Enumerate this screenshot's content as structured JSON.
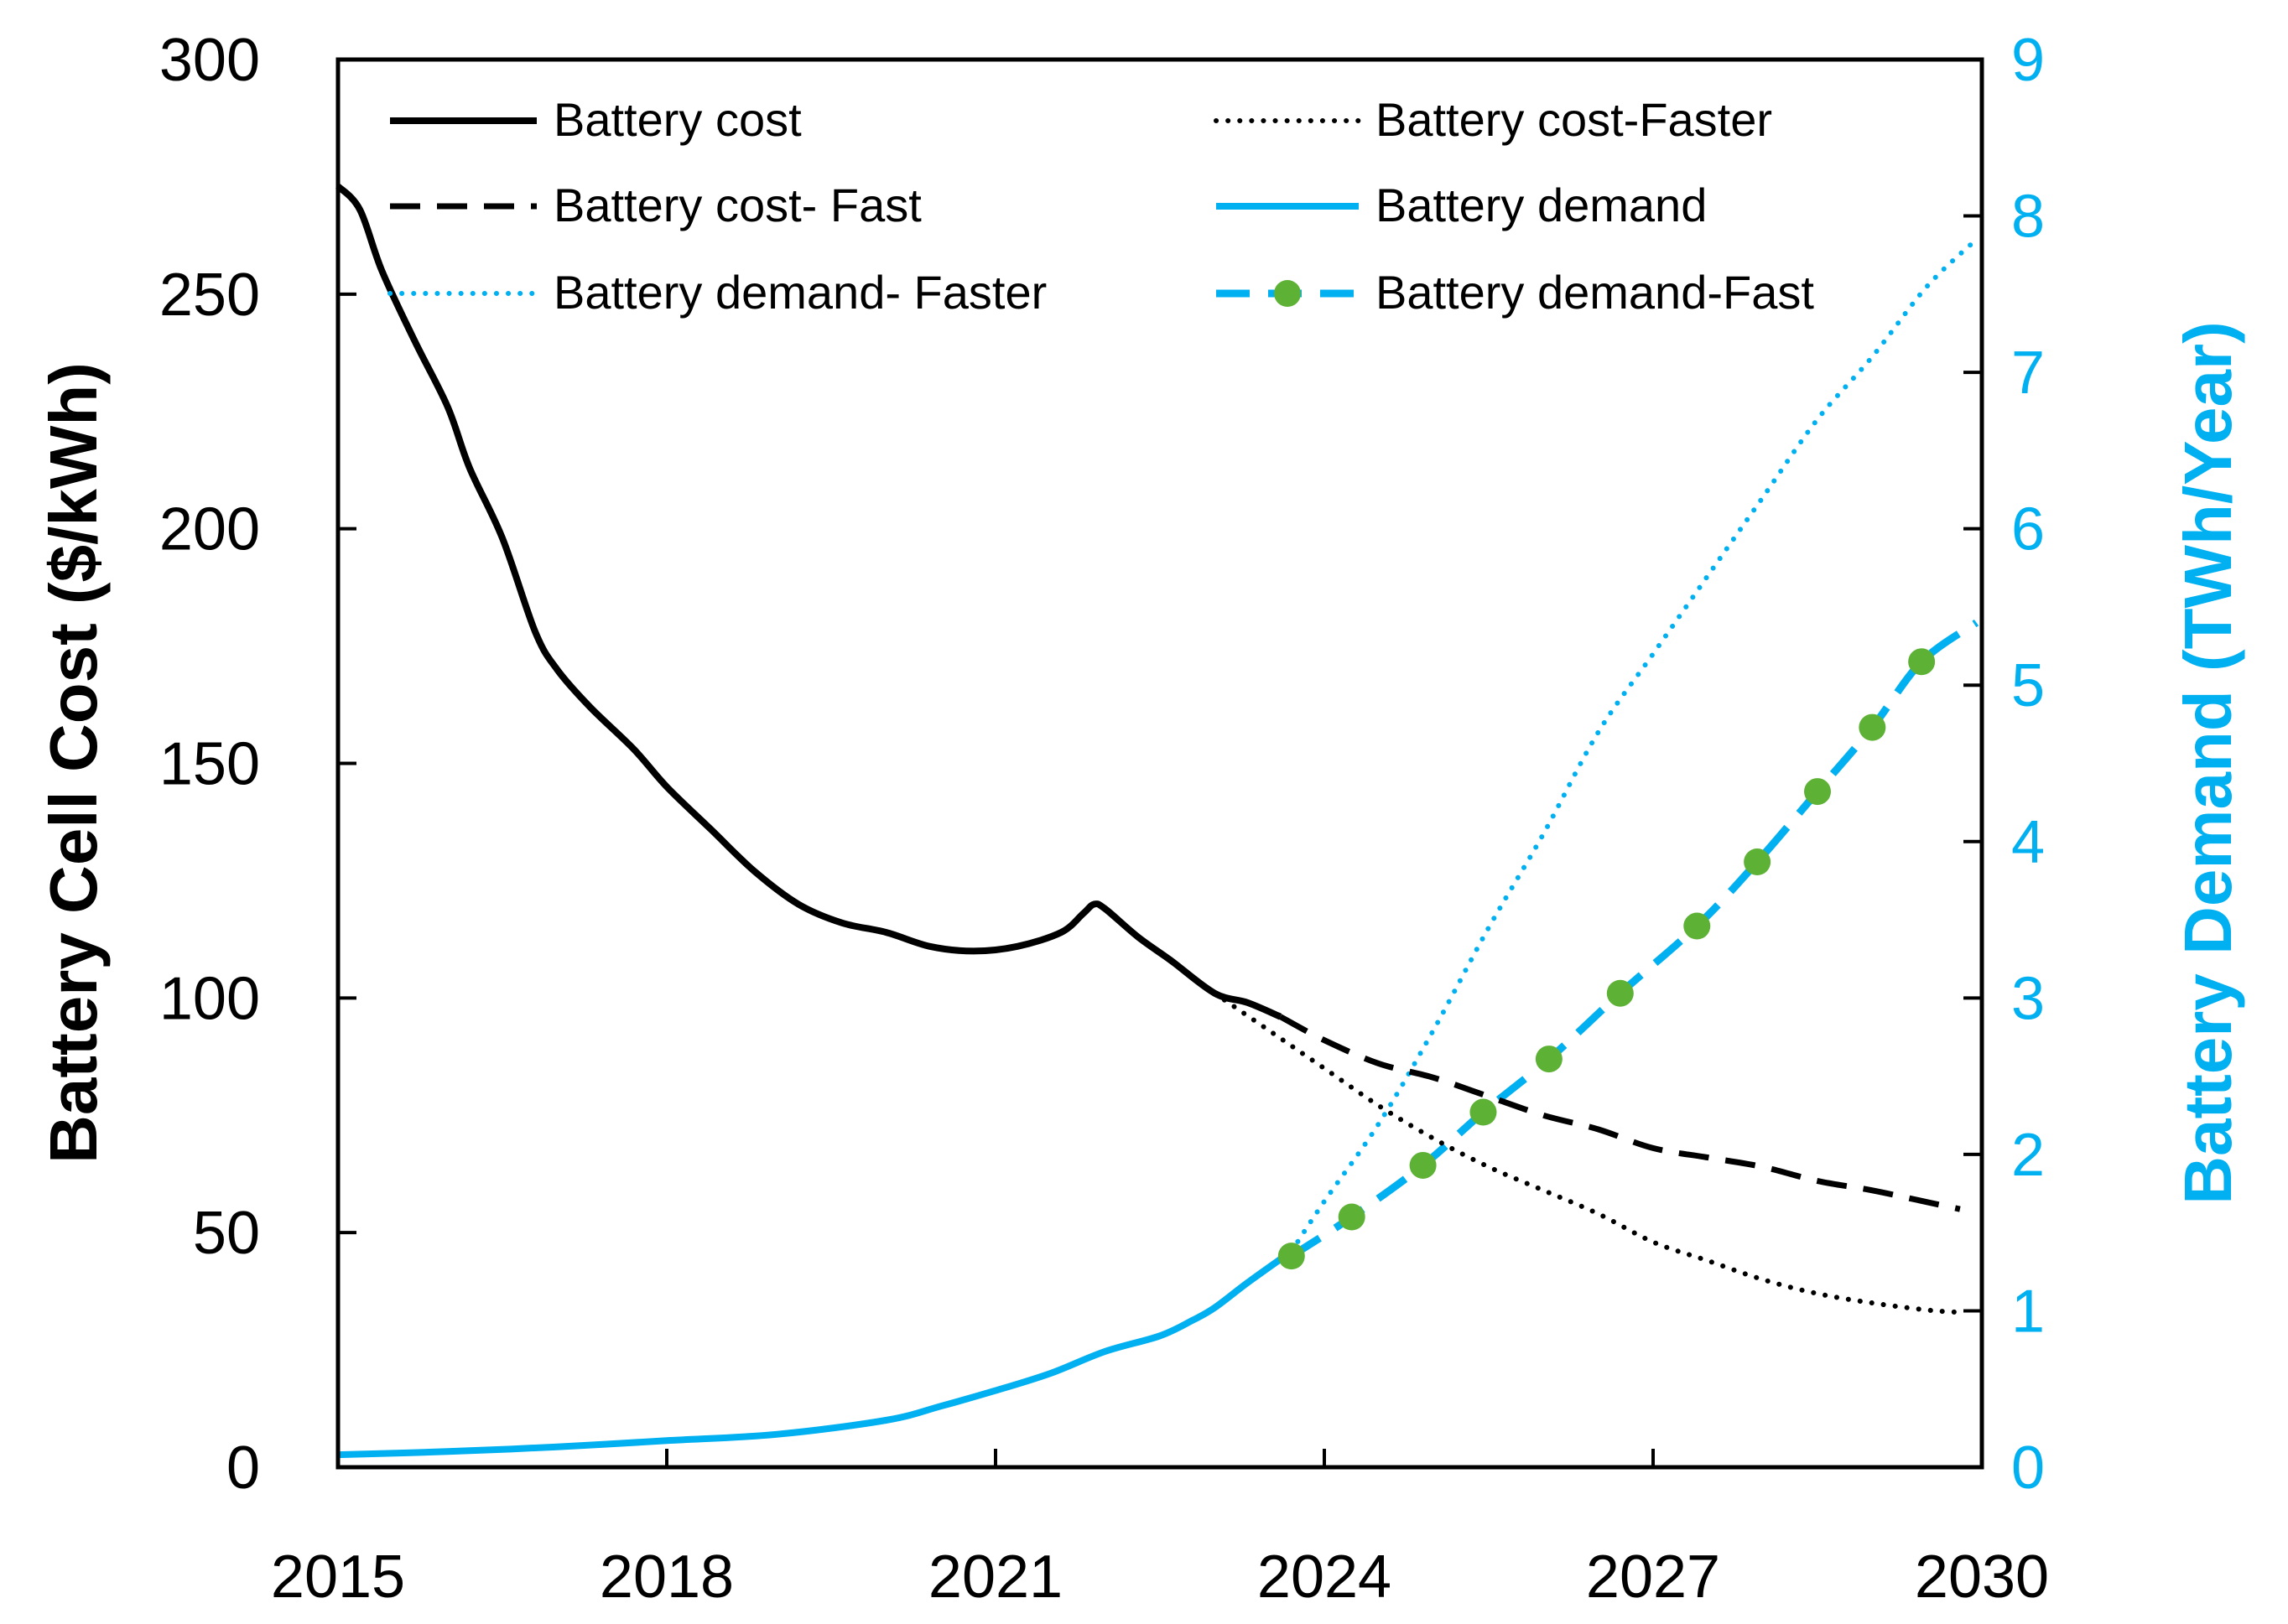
{
  "chart_data": {
    "type": "line",
    "x_axis": {
      "range": [
        2015,
        2030
      ],
      "ticks": [
        2015,
        2018,
        2021,
        2024,
        2027,
        2030
      ],
      "tick_labels": [
        "2015",
        "2018",
        "2021",
        "2024",
        "2027",
        "2030"
      ]
    },
    "y_left": {
      "label": "Battery Cell Cost ($/kWh)",
      "range": [
        0,
        300
      ],
      "ticks": [
        0,
        50,
        100,
        150,
        200,
        250,
        300
      ],
      "tick_labels": [
        "0",
        "50",
        "100",
        "150",
        "200",
        "250",
        "300"
      ]
    },
    "y_right": {
      "label": "Battery Demand (TWh/Year)",
      "range": [
        0,
        9
      ],
      "ticks": [
        0,
        1,
        2,
        3,
        4,
        5,
        6,
        7,
        8,
        9
      ],
      "tick_labels": [
        "0",
        "1",
        "2",
        "3",
        "4",
        "5",
        "6",
        "7",
        "8",
        "9"
      ]
    },
    "colors": {
      "black": "#000000",
      "cyan": "#00B0F0",
      "green": "#5DB135"
    },
    "legend": [
      {
        "id": "battery_cost",
        "label": "Battery cost"
      },
      {
        "id": "battery_cost_faster",
        "label": "Battery cost-Faster"
      },
      {
        "id": "battery_cost_fast",
        "label": "Battery cost- Fast"
      },
      {
        "id": "battery_demand",
        "label": "Battery demand"
      },
      {
        "id": "battery_demand_faster",
        "label": "Battery demand- Faster"
      },
      {
        "id": "battery_demand_fast",
        "label": "Battery demand-Fast"
      }
    ],
    "series": [
      {
        "id": "battery_cost",
        "name": "Battery cost",
        "axis": "left",
        "style": "solid",
        "color": "#000000",
        "points": [
          [
            2015.0,
            273
          ],
          [
            2015.2,
            268
          ],
          [
            2015.4,
            255
          ],
          [
            2015.7,
            240
          ],
          [
            2016.0,
            226
          ],
          [
            2016.2,
            213
          ],
          [
            2016.5,
            198
          ],
          [
            2016.8,
            178
          ],
          [
            2017.0,
            170
          ],
          [
            2017.3,
            162
          ],
          [
            2017.7,
            153
          ],
          [
            2018.0,
            145
          ],
          [
            2018.4,
            136
          ],
          [
            2018.8,
            127
          ],
          [
            2019.2,
            120
          ],
          [
            2019.6,
            116
          ],
          [
            2020.0,
            114
          ],
          [
            2020.4,
            111
          ],
          [
            2020.8,
            110
          ],
          [
            2021.2,
            111
          ],
          [
            2021.6,
            114
          ],
          [
            2021.8,
            118
          ],
          [
            2021.9,
            120
          ],
          [
            2022.0,
            119
          ],
          [
            2022.3,
            113
          ],
          [
            2022.6,
            108
          ],
          [
            2023.0,
            101
          ],
          [
            2023.3,
            99
          ],
          [
            2023.6,
            96
          ]
        ]
      },
      {
        "id": "battery_cost_fast",
        "name": "Battery cost- Fast",
        "axis": "left",
        "style": "dashed",
        "color": "#000000",
        "points": [
          [
            2023.6,
            96
          ],
          [
            2024.0,
            91
          ],
          [
            2024.5,
            86
          ],
          [
            2025.0,
            83
          ],
          [
            2025.5,
            79
          ],
          [
            2026.0,
            75
          ],
          [
            2026.5,
            72
          ],
          [
            2027.0,
            68
          ],
          [
            2027.5,
            66
          ],
          [
            2028.0,
            64
          ],
          [
            2028.5,
            61
          ],
          [
            2029.0,
            59
          ],
          [
            2029.5,
            56.5
          ],
          [
            2029.8,
            55
          ]
        ]
      },
      {
        "id": "battery_cost_faster",
        "name": "Battery cost-Faster",
        "axis": "left",
        "style": "dotted",
        "color": "#000000",
        "points": [
          [
            2023.0,
            101
          ],
          [
            2023.5,
            93
          ],
          [
            2024.0,
            85
          ],
          [
            2024.5,
            77
          ],
          [
            2025.0,
            70
          ],
          [
            2025.5,
            64
          ],
          [
            2026.0,
            59
          ],
          [
            2026.5,
            54
          ],
          [
            2027.0,
            48
          ],
          [
            2027.5,
            44
          ],
          [
            2028.0,
            40
          ],
          [
            2028.5,
            37
          ],
          [
            2029.0,
            35
          ],
          [
            2029.5,
            33.5
          ],
          [
            2029.8,
            33
          ]
        ]
      },
      {
        "id": "battery_demand",
        "name": "Battery demand",
        "axis": "right",
        "style": "solid",
        "color": "#00B0F0",
        "points": [
          [
            2015.0,
            0.08
          ],
          [
            2016.0,
            0.1
          ],
          [
            2017.0,
            0.13
          ],
          [
            2018.0,
            0.17
          ],
          [
            2019.0,
            0.21
          ],
          [
            2020.0,
            0.3
          ],
          [
            2020.5,
            0.39
          ],
          [
            2021.0,
            0.49
          ],
          [
            2021.5,
            0.6
          ],
          [
            2022.0,
            0.74
          ],
          [
            2022.5,
            0.84
          ],
          [
            2022.8,
            0.94
          ],
          [
            2023.0,
            1.02
          ],
          [
            2023.3,
            1.18
          ],
          [
            2023.7,
            1.38
          ]
        ]
      },
      {
        "id": "battery_demand_faster",
        "name": "Battery demand- Faster",
        "axis": "right",
        "style": "dotted",
        "color": "#00B0F0",
        "points": [
          [
            2023.7,
            1.38
          ],
          [
            2024.0,
            1.7
          ],
          [
            2024.5,
            2.2
          ],
          [
            2025.0,
            2.8
          ],
          [
            2025.5,
            3.45
          ],
          [
            2026.0,
            4.05
          ],
          [
            2026.5,
            4.7
          ],
          [
            2027.0,
            5.2
          ],
          [
            2027.5,
            5.7
          ],
          [
            2028.0,
            6.2
          ],
          [
            2028.5,
            6.7
          ],
          [
            2029.0,
            7.1
          ],
          [
            2029.5,
            7.55
          ],
          [
            2029.95,
            7.85
          ]
        ]
      },
      {
        "id": "battery_demand_fast",
        "name": "Battery demand-Fast",
        "axis": "right",
        "style": "dashed-markers",
        "color": "#00B0F0",
        "marker_color": "#5DB135",
        "points": [
          [
            2023.7,
            1.35
          ],
          [
            2024.25,
            1.6
          ],
          [
            2024.9,
            1.93
          ],
          [
            2025.45,
            2.27
          ],
          [
            2026.05,
            2.61
          ],
          [
            2026.7,
            3.03
          ],
          [
            2027.4,
            3.46
          ],
          [
            2027.95,
            3.87
          ],
          [
            2028.5,
            4.32
          ],
          [
            2029.0,
            4.73
          ],
          [
            2029.45,
            5.15
          ],
          [
            2029.95,
            5.4
          ]
        ],
        "markers": [
          [
            2023.7,
            1.35
          ],
          [
            2024.25,
            1.6
          ],
          [
            2024.9,
            1.93
          ],
          [
            2025.45,
            2.27
          ],
          [
            2026.05,
            2.61
          ],
          [
            2026.7,
            3.03
          ],
          [
            2027.4,
            3.46
          ],
          [
            2027.95,
            3.87
          ],
          [
            2028.5,
            4.32
          ],
          [
            2029.0,
            4.73
          ],
          [
            2029.45,
            5.15
          ]
        ]
      }
    ]
  }
}
